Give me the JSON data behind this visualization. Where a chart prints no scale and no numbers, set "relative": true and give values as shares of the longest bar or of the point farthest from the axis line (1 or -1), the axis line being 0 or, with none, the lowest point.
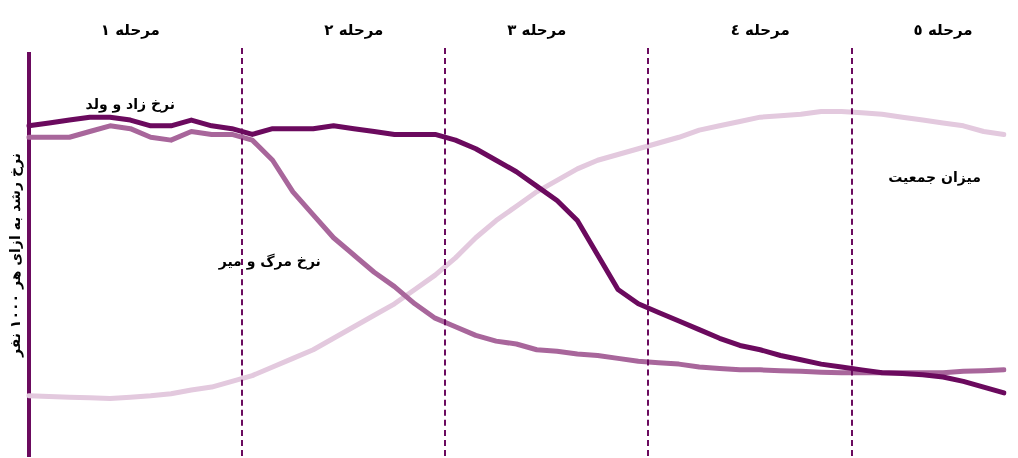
{
  "chart_data": {
    "type": "line",
    "relative": true,
    "ylabel": "نرخ رشد به ازای هر ۱۰۰۰ نفر",
    "tick_labels": "x",
    "grid": false,
    "legend": false,
    "marker": "none",
    "line_style": "solid",
    "categories": [
      null,
      null,
      null,
      null,
      null,
      "مرحله ۱",
      null,
      null,
      null,
      null,
      null,
      null,
      null,
      null,
      null,
      null,
      "مرحله ۲",
      null,
      null,
      null,
      null,
      null,
      null,
      null,
      null,
      "مرحله ۳",
      null,
      null,
      null,
      null,
      null,
      null,
      null,
      null,
      null,
      null,
      "مرحله ٤",
      null,
      null,
      null,
      null,
      null,
      null,
      null,
      null,
      "مرحله ٥",
      null,
      null,
      null
    ],
    "series": [
      {
        "color": "#6b0a5e",
        "values": [
          0.95,
          0.96,
          0.97,
          0.98,
          0.98,
          0.97,
          0.95,
          0.95,
          0.97,
          0.95,
          0.94,
          0.92,
          0.94,
          0.94,
          0.94,
          0.95,
          0.94,
          0.93,
          0.92,
          0.92,
          0.92,
          0.9,
          0.87,
          0.83,
          0.79,
          0.74,
          0.69,
          0.62,
          0.5,
          0.38,
          0.33,
          0.3,
          0.27,
          0.24,
          0.21,
          0.185,
          0.17,
          0.15,
          0.135,
          0.12,
          0.11,
          0.1,
          0.09,
          0.087,
          0.083,
          0.075,
          0.06,
          0.04,
          0.02
        ]
      },
      {
        "color": "#a8669b",
        "values": [
          0.91,
          0.91,
          0.91,
          0.93,
          0.95,
          0.94,
          0.91,
          0.9,
          0.93,
          0.92,
          0.92,
          0.9,
          0.83,
          0.72,
          0.64,
          0.56,
          0.5,
          0.44,
          0.39,
          0.33,
          0.28,
          0.25,
          0.22,
          0.2,
          0.19,
          0.17,
          0.165,
          0.155,
          0.15,
          0.14,
          0.13,
          0.125,
          0.12,
          0.11,
          0.105,
          0.1,
          0.1,
          0.097,
          0.095,
          0.092,
          0.09,
          0.09,
          0.09,
          0.09,
          0.09,
          0.09,
          0.095,
          0.097,
          0.1
        ]
      },
      {
        "color": "#e3c9de",
        "values": [
          0.01,
          0.007,
          0.005,
          0.003,
          0,
          0.005,
          0.01,
          0.017,
          0.03,
          0.04,
          0.06,
          0.08,
          0.11,
          0.14,
          0.17,
          0.21,
          0.25,
          0.29,
          0.33,
          0.38,
          0.43,
          0.49,
          0.56,
          0.62,
          0.67,
          0.72,
          0.76,
          0.8,
          0.83,
          0.85,
          0.87,
          0.89,
          0.91,
          0.935,
          0.95,
          0.965,
          0.98,
          0.985,
          0.99,
          1,
          1,
          0.995,
          0.99,
          0.98,
          0.97,
          0.96,
          0.95,
          0.93,
          0.92
        ]
      }
    ],
    "annotations": [
      "نرخ زاد و ولد",
      "نرخ مرگ و میر",
      "میزان جمعیت"
    ]
  }
}
